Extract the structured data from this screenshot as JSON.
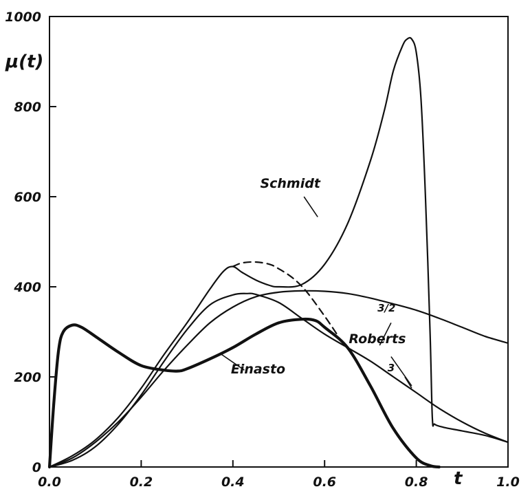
{
  "chart_data": {
    "type": "line",
    "xlabel": "t",
    "ylabel": "μ(t)",
    "xlim": [
      0.0,
      1.0
    ],
    "ylim": [
      0,
      1000
    ],
    "x_ticks": [
      0.0,
      0.2,
      0.4,
      0.6,
      0.8,
      1.0
    ],
    "x_tick_labels": [
      "0.0",
      "0.2",
      "0.4",
      "0.6",
      "0.8",
      "1.0"
    ],
    "y_ticks": [
      0,
      200,
      400,
      600,
      800,
      1000
    ],
    "y_tick_labels": [
      "0",
      "200",
      "400",
      "600",
      "800",
      "1000"
    ],
    "grid": false,
    "series": [
      {
        "name": "Schmidt",
        "style": "solid",
        "x": [
          0.0,
          0.05,
          0.1,
          0.15,
          0.2,
          0.25,
          0.3,
          0.35,
          0.38,
          0.4,
          0.42,
          0.45,
          0.48,
          0.5,
          0.55,
          0.6,
          0.65,
          0.7,
          0.73,
          0.75,
          0.77,
          0.78,
          0.79,
          0.8,
          0.81,
          0.82,
          0.83,
          0.835,
          0.84,
          0.86,
          0.9,
          0.95,
          1.0
        ],
        "y": [
          0,
          25,
          60,
          110,
          175,
          250,
          320,
          395,
          435,
          445,
          432,
          415,
          403,
          400,
          405,
          450,
          540,
          680,
          790,
          880,
          935,
          950,
          950,
          920,
          820,
          600,
          300,
          110,
          95,
          88,
          80,
          70,
          55
        ]
      },
      {
        "name": "",
        "style": "dashed",
        "x": [
          0.4,
          0.42,
          0.45,
          0.48,
          0.5,
          0.53,
          0.56,
          0.6,
          0.63
        ],
        "y": [
          445,
          453,
          455,
          450,
          440,
          420,
          390,
          335,
          290
        ]
      },
      {
        "name": "Einasto",
        "style": "bold",
        "x": [
          0.0,
          0.01,
          0.02,
          0.03,
          0.05,
          0.07,
          0.1,
          0.15,
          0.2,
          0.25,
          0.28,
          0.3,
          0.35,
          0.4,
          0.45,
          0.5,
          0.55,
          0.58,
          0.6,
          0.65,
          0.7,
          0.75,
          0.8,
          0.83,
          0.85
        ],
        "y": [
          0,
          150,
          260,
          300,
          315,
          310,
          290,
          255,
          225,
          215,
          213,
          218,
          240,
          265,
          295,
          320,
          328,
          325,
          310,
          265,
          180,
          85,
          20,
          3,
          0
        ]
      },
      {
        "name": "3/2",
        "style": "solid",
        "x": [
          0.0,
          0.05,
          0.1,
          0.15,
          0.2,
          0.25,
          0.3,
          0.35,
          0.4,
          0.45,
          0.5,
          0.55,
          0.6,
          0.65,
          0.7,
          0.75,
          0.8,
          0.85,
          0.9,
          0.95,
          1.0
        ],
        "y": [
          0,
          20,
          55,
          100,
          155,
          215,
          270,
          320,
          355,
          378,
          388,
          391,
          390,
          385,
          375,
          362,
          348,
          330,
          310,
          290,
          275
        ]
      },
      {
        "name": "3",
        "style": "solid",
        "x": [
          0.0,
          0.05,
          0.1,
          0.15,
          0.2,
          0.25,
          0.3,
          0.35,
          0.4,
          0.43,
          0.45,
          0.5,
          0.55,
          0.6,
          0.65,
          0.7,
          0.75,
          0.8,
          0.85,
          0.9,
          0.95,
          1.0
        ],
        "y": [
          0,
          15,
          45,
          95,
          160,
          235,
          305,
          360,
          382,
          385,
          383,
          365,
          330,
          295,
          265,
          235,
          200,
          165,
          130,
          100,
          75,
          55
        ]
      }
    ],
    "annotations": [
      {
        "text": "Schmidt",
        "x": 0.525,
        "y": 620
      },
      {
        "text": "Einasto",
        "x": 0.455,
        "y": 208
      },
      {
        "text": "Roberts",
        "x": 0.715,
        "y": 275
      },
      {
        "text": "3/2",
        "x": 0.735,
        "y": 345
      },
      {
        "text": "3",
        "x": 0.745,
        "y": 212
      }
    ]
  }
}
